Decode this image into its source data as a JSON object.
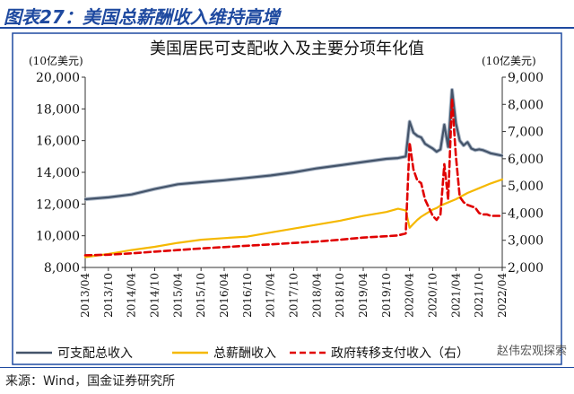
{
  "header": {
    "title": "图表27：美国总薪酬收入维持高增"
  },
  "footer": {
    "source": "来源：Wind，国金证券研究所"
  },
  "watermark": {
    "text": "赵伟宏观探索"
  },
  "colors": {
    "disposable": "#44546a",
    "compensation": "#f5b800",
    "transfer": "#e00000",
    "frame": "#1f4aa0"
  },
  "chart_data": {
    "type": "line",
    "title": "美国居民可支配收入及主要分项年化值",
    "ylabel": "(10亿美元)",
    "y2label": "(10亿美元)",
    "ylim": [
      8000,
      20000
    ],
    "y2lim": [
      2000,
      9000
    ],
    "yticks": [
      "8,000",
      "10,000",
      "12,000",
      "14,000",
      "16,000",
      "18,000",
      "20,000"
    ],
    "y2ticks": [
      "2,000",
      "3,000",
      "4,000",
      "5,000",
      "6,000",
      "7,000",
      "8,000",
      "9,000"
    ],
    "x_start": "2013/04",
    "x_end": "2022/04",
    "x_ticks": [
      "2013/04",
      "2013/10",
      "2014/04",
      "2014/10",
      "2015/04",
      "2015/10",
      "2016/04",
      "2016/10",
      "2017/04",
      "2017/10",
      "2018/04",
      "2018/10",
      "2019/04",
      "2019/10",
      "2020/04",
      "2020/10",
      "2021/04",
      "2021/10",
      "2022/04"
    ],
    "series": [
      {
        "name": "可支配总收入",
        "axis": "left",
        "style": "solid",
        "points": [
          [
            "2013/04",
            12300
          ],
          [
            "2013/10",
            12420
          ],
          [
            "2014/04",
            12600
          ],
          [
            "2014/10",
            12950
          ],
          [
            "2015/04",
            13250
          ],
          [
            "2015/10",
            13380
          ],
          [
            "2016/04",
            13500
          ],
          [
            "2016/10",
            13650
          ],
          [
            "2017/04",
            13800
          ],
          [
            "2017/10",
            14000
          ],
          [
            "2018/04",
            14250
          ],
          [
            "2018/10",
            14450
          ],
          [
            "2019/04",
            14650
          ],
          [
            "2019/10",
            14850
          ],
          [
            "2020/01",
            14900
          ],
          [
            "2020/03",
            15000
          ],
          [
            "2020/04",
            17200
          ],
          [
            "2020/05",
            16500
          ],
          [
            "2020/06",
            16300
          ],
          [
            "2020/07",
            16200
          ],
          [
            "2020/08",
            15800
          ],
          [
            "2020/09",
            15650
          ],
          [
            "2020/10",
            15500
          ],
          [
            "2020/11",
            15300
          ],
          [
            "2020/12",
            15450
          ],
          [
            "2021/01",
            17000
          ],
          [
            "2021/02",
            15600
          ],
          [
            "2021/03",
            19200
          ],
          [
            "2021/04",
            17100
          ],
          [
            "2021/05",
            16000
          ],
          [
            "2021/06",
            15700
          ],
          [
            "2021/07",
            15900
          ],
          [
            "2021/08",
            15500
          ],
          [
            "2021/09",
            15400
          ],
          [
            "2021/10",
            15450
          ],
          [
            "2021/11",
            15400
          ],
          [
            "2021/12",
            15300
          ],
          [
            "2022/01",
            15200
          ],
          [
            "2022/02",
            15150
          ],
          [
            "2022/03",
            15100
          ],
          [
            "2022/04",
            15050
          ]
        ]
      },
      {
        "name": "总薪酬收入",
        "axis": "left",
        "style": "solid",
        "points": [
          [
            "2013/04",
            8650
          ],
          [
            "2013/10",
            8850
          ],
          [
            "2014/04",
            9100
          ],
          [
            "2014/10",
            9300
          ],
          [
            "2015/04",
            9550
          ],
          [
            "2015/10",
            9750
          ],
          [
            "2016/04",
            9850
          ],
          [
            "2016/10",
            9950
          ],
          [
            "2017/04",
            10200
          ],
          [
            "2017/10",
            10450
          ],
          [
            "2018/04",
            10700
          ],
          [
            "2018/10",
            10950
          ],
          [
            "2019/04",
            11250
          ],
          [
            "2019/10",
            11500
          ],
          [
            "2020/01",
            11700
          ],
          [
            "2020/03",
            11600
          ],
          [
            "2020/04",
            10500
          ],
          [
            "2020/05",
            10750
          ],
          [
            "2020/06",
            11000
          ],
          [
            "2020/07",
            11200
          ],
          [
            "2020/08",
            11350
          ],
          [
            "2020/09",
            11500
          ],
          [
            "2020/10",
            11650
          ],
          [
            "2020/11",
            11750
          ],
          [
            "2020/12",
            11900
          ],
          [
            "2021/01",
            12000
          ],
          [
            "2021/04",
            12300
          ],
          [
            "2021/07",
            12700
          ],
          [
            "2021/10",
            13000
          ],
          [
            "2022/01",
            13300
          ],
          [
            "2022/04",
            13550
          ]
        ]
      },
      {
        "name": "政府转移支付收入（右）",
        "axis": "right",
        "style": "dashed",
        "points": [
          [
            "2013/04",
            2450
          ],
          [
            "2013/10",
            2470
          ],
          [
            "2014/04",
            2520
          ],
          [
            "2014/10",
            2580
          ],
          [
            "2015/04",
            2640
          ],
          [
            "2015/10",
            2700
          ],
          [
            "2016/04",
            2750
          ],
          [
            "2016/10",
            2800
          ],
          [
            "2017/04",
            2850
          ],
          [
            "2017/10",
            2900
          ],
          [
            "2018/04",
            2950
          ],
          [
            "2018/10",
            3020
          ],
          [
            "2019/04",
            3100
          ],
          [
            "2019/10",
            3150
          ],
          [
            "2020/01",
            3180
          ],
          [
            "2020/03",
            3250
          ],
          [
            "2020/04",
            6600
          ],
          [
            "2020/05",
            5600
          ],
          [
            "2020/06",
            5200
          ],
          [
            "2020/07",
            5100
          ],
          [
            "2020/08",
            4500
          ],
          [
            "2020/09",
            4200
          ],
          [
            "2020/10",
            3900
          ],
          [
            "2020/11",
            3750
          ],
          [
            "2020/12",
            3950
          ],
          [
            "2021/01",
            5800
          ],
          [
            "2021/02",
            4500
          ],
          [
            "2021/03",
            8200
          ],
          [
            "2021/04",
            6100
          ],
          [
            "2021/05",
            4600
          ],
          [
            "2021/06",
            4400
          ],
          [
            "2021/07",
            4300
          ],
          [
            "2021/08",
            4250
          ],
          [
            "2021/09",
            4200
          ],
          [
            "2021/10",
            4000
          ],
          [
            "2021/11",
            3950
          ],
          [
            "2021/12",
            3950
          ],
          [
            "2022/01",
            3900
          ],
          [
            "2022/02",
            3900
          ],
          [
            "2022/03",
            3900
          ],
          [
            "2022/04",
            3900
          ]
        ]
      }
    ]
  }
}
